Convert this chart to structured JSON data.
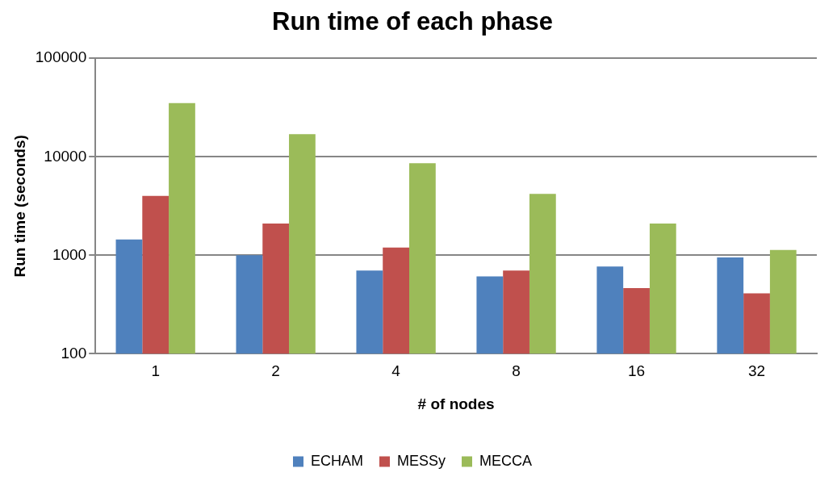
{
  "chart_data": {
    "type": "bar",
    "title": "Run time of each phase",
    "xlabel": "# of nodes",
    "ylabel": "Run time (seconds)",
    "categories": [
      "1",
      "2",
      "4",
      "8",
      "16",
      "32"
    ],
    "series": [
      {
        "name": "ECHAM",
        "color": "#4f81bd",
        "values": [
          1450,
          1000,
          700,
          610,
          770,
          950
        ]
      },
      {
        "name": "MESSy",
        "color": "#c0504d",
        "values": [
          4000,
          2100,
          1200,
          700,
          465,
          410
        ]
      },
      {
        "name": "MECCA",
        "color": "#9bbb59",
        "values": [
          35000,
          17000,
          8600,
          4200,
          2100,
          1130
        ]
      }
    ],
    "log": "y",
    "ylim": [
      100,
      100000
    ],
    "yticks": [
      100,
      1000,
      10000,
      100000
    ],
    "grid": "y",
    "legend": "bottom"
  }
}
